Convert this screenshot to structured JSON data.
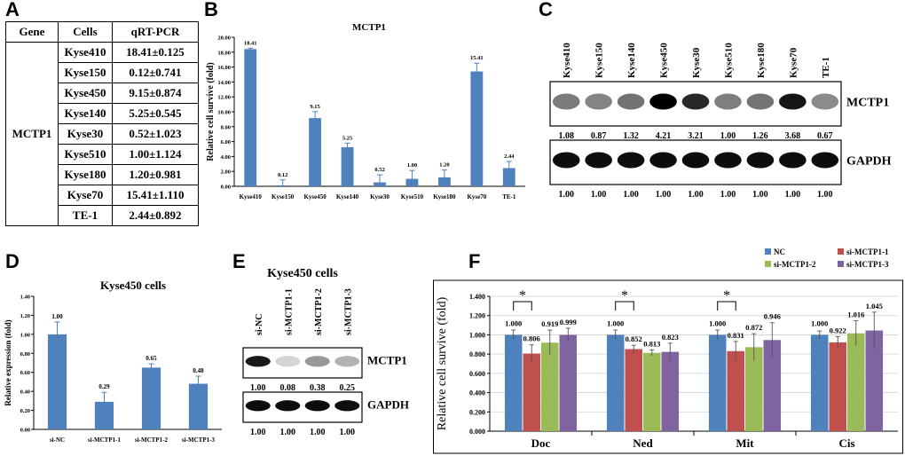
{
  "panel_labels": {
    "a": "A",
    "b": "B",
    "c": "C",
    "d": "D",
    "e": "E",
    "f": "F"
  },
  "table": {
    "headers": [
      "Gene",
      "Cells",
      "qRT-PCR"
    ],
    "gene": "MCTP1",
    "rows": [
      {
        "cell": "Kyse410",
        "value": "18.41±0.125"
      },
      {
        "cell": "Kyse150",
        "value": "0.12±0.741"
      },
      {
        "cell": "Kyse450",
        "value": "9.15±0.874"
      },
      {
        "cell": "Kyse140",
        "value": "5.25±0.545"
      },
      {
        "cell": "Kyse30",
        "value": "0.52±1.023"
      },
      {
        "cell": "Kyse510",
        "value": "1.00±1.124"
      },
      {
        "cell": "Kyse180",
        "value": "1.20±0.981"
      },
      {
        "cell": "Kyse70",
        "value": "15.41±1.110"
      },
      {
        "cell": "TE-1",
        "value": "2.44±0.892"
      }
    ]
  },
  "blot_c": {
    "lanes": [
      "Kyse410",
      "Kyse150",
      "Kyse140",
      "Kyse450",
      "Kyse30",
      "Kyse510",
      "Kyse180",
      "Kyse70",
      "TE-1"
    ],
    "targets": [
      {
        "label": "MCTP1",
        "values": [
          "1.08",
          "0.87",
          "1.32",
          "4.21",
          "3.21",
          "1.00",
          "1.26",
          "3.68",
          "0.67"
        ]
      },
      {
        "label": "GAPDH",
        "values": [
          "1.00",
          "1.00",
          "1.00",
          "1.00",
          "1.00",
          "1.00",
          "1.00",
          "1.00",
          "1.00"
        ]
      }
    ]
  },
  "blot_e": {
    "title": "Kyse450 cells",
    "lanes": [
      "si-NC",
      "si-MCTP1-1",
      "si-MCTP1-2",
      "si-MCTP1-3"
    ],
    "targets": [
      {
        "label": "MCTP1",
        "values": [
          "1.00",
          "0.08",
          "0.38",
          "0.25"
        ]
      },
      {
        "label": "GAPDH",
        "values": [
          "1.00",
          "1.00",
          "1.00",
          "1.00"
        ]
      }
    ]
  },
  "colors": {
    "bar": "#4f81bd",
    "nc": "#4f81bd",
    "s1": "#c0504d",
    "s2": "#9bbb59",
    "s3": "#8064a2"
  },
  "chart_data": [
    {
      "id": "B",
      "type": "bar",
      "title": "MCTP1",
      "ylabel": "Relative cell survive (fold)",
      "xlabel": "",
      "ylim": [
        0,
        20
      ],
      "yticks": [
        "0.00",
        "2.00",
        "4.00",
        "6.00",
        "8.00",
        "10.00",
        "12.00",
        "14.00",
        "16.00",
        "18.00",
        "20.00"
      ],
      "categories": [
        "Kyse410",
        "Kyse150",
        "Kyse450",
        "Kyse140",
        "Kyse30",
        "Kyse510",
        "Kyse180",
        "Kyse70",
        "TE-1"
      ],
      "values": [
        18.41,
        0.12,
        9.15,
        5.25,
        0.52,
        1.0,
        1.2,
        15.41,
        2.44
      ],
      "errors": [
        0.125,
        0.741,
        0.874,
        0.545,
        1.023,
        1.124,
        0.981,
        1.11,
        0.892
      ],
      "labels": [
        "18.41",
        "0.12",
        "9.15",
        "5.25",
        "0.52",
        "1.00",
        "1.20",
        "15.41",
        "2.44"
      ]
    },
    {
      "id": "D",
      "type": "bar",
      "title": "Kyse450 cells",
      "ylabel": "Relative expression (fold)",
      "xlabel": "",
      "ylim": [
        0,
        1.4
      ],
      "yticks": [
        "0.00",
        "0.20",
        "0.40",
        "0.60",
        "0.80",
        "1.00",
        "1.20",
        "1.40"
      ],
      "categories": [
        "si-NC",
        "si-MCTP1-1",
        "si-MCTP1-2",
        "si-MCTP1-3"
      ],
      "values": [
        1.0,
        0.29,
        0.65,
        0.48
      ],
      "errors": [
        0.13,
        0.1,
        0.04,
        0.08
      ],
      "labels": [
        "1.00",
        "0.29",
        "0.65",
        "0.48"
      ]
    },
    {
      "id": "F",
      "type": "bar",
      "title": "",
      "ylabel": "Relative cell survive (fold)",
      "xlabel": "",
      "ylim": [
        0,
        1.4
      ],
      "yticks": [
        "0.000",
        "0.200",
        "0.400",
        "0.600",
        "0.800",
        "1.000",
        "1.200",
        "1.400"
      ],
      "categories": [
        "Doc",
        "Ned",
        "Mit",
        "Cis"
      ],
      "series": [
        {
          "name": "NC",
          "values": [
            1.0,
            1.0,
            1.0,
            1.0
          ],
          "errors": [
            0.05,
            0.05,
            0.05,
            0.04
          ],
          "labels": [
            "1.000",
            "1.000",
            "1.000",
            "1.000"
          ]
        },
        {
          "name": "si-MCTP1-1",
          "values": [
            0.806,
            0.852,
            0.831,
            0.922
          ],
          "errors": [
            0.09,
            0.04,
            0.1,
            0.06
          ],
          "labels": [
            "0.806",
            "0.852",
            "0.831",
            "0.922"
          ]
        },
        {
          "name": "si-MCTP1-2",
          "values": [
            0.919,
            0.813,
            0.872,
            1.016
          ],
          "errors": [
            0.13,
            0.03,
            0.14,
            0.13
          ],
          "labels": [
            "0.919",
            "0.813",
            "0.872",
            "1.016"
          ]
        },
        {
          "name": "si-MCTP1-3",
          "values": [
            0.999,
            0.823,
            0.946,
            1.045
          ],
          "errors": [
            0.07,
            0.09,
            0.18,
            0.19
          ],
          "labels": [
            "0.999",
            "0.823",
            "0.946",
            "1.045"
          ]
        }
      ],
      "significance": {
        "symbol": "*",
        "groups": [
          "Doc",
          "Ned",
          "Mit"
        ]
      },
      "legend": "top-right"
    }
  ]
}
